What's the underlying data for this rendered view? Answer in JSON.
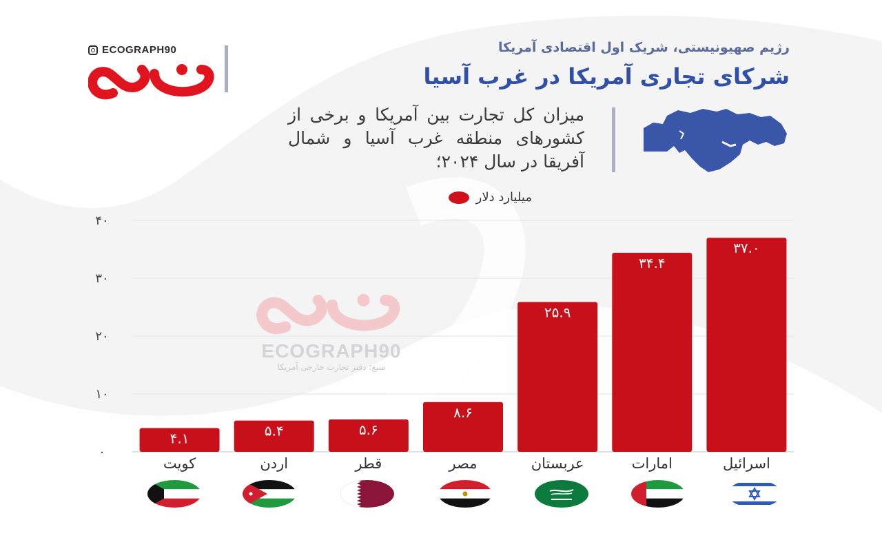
{
  "header": {
    "handle": "ECOGRAPH90",
    "subtitle": "رژیم صهیونیستی، شریک اول اقتصادی آمریکا",
    "title": "شرکای تجاری آمریکا در غرب آسیا",
    "question": "میزان کل تجارت بین آمریکا و برخی از کشورهای منطقه غرب آسیا و شمال آفریقا در سال ۲۰۲۴؛"
  },
  "watermark": {
    "text": "ECOGRAPH90",
    "source": "منبع: دفتر تجارت خارجی آمریکا"
  },
  "colors": {
    "bar": "#c8101a",
    "title": "#3050a8",
    "subtitle": "#5a6a9b",
    "map": "#3a56a8",
    "logo": "#e0141e"
  },
  "chart_data": {
    "type": "bar",
    "categories": [
      "کویت",
      "اردن",
      "قطر",
      "مصر",
      "عربستان",
      "امارات",
      "اسرائیل"
    ],
    "values": [
      4.1,
      5.4,
      5.6,
      8.6,
      25.9,
      34.4,
      37.0
    ],
    "value_labels": [
      "۴.۱",
      "۵.۴",
      "۵.۶",
      "۸.۶",
      "۲۵.۹",
      "۳۴.۴",
      "۳۷.۰"
    ],
    "series": [
      {
        "name": "میلیارد دلار",
        "values": [
          4.1,
          5.4,
          5.6,
          8.6,
          25.9,
          34.4,
          37.0
        ]
      }
    ],
    "ylim": [
      0,
      40
    ],
    "yticks": [
      0,
      10,
      20,
      30,
      40
    ],
    "ytick_labels": [
      "۰",
      "۱۰",
      "۲۰",
      "۳۰",
      "۴۰"
    ],
    "grid": true,
    "legend": "top-center",
    "flags": [
      "kuwait-flag-icon",
      "jordan-flag-icon",
      "qatar-flag-icon",
      "egypt-flag-icon",
      "saudi-flag-icon",
      "uae-flag-icon",
      "israel-flag-icon"
    ]
  }
}
